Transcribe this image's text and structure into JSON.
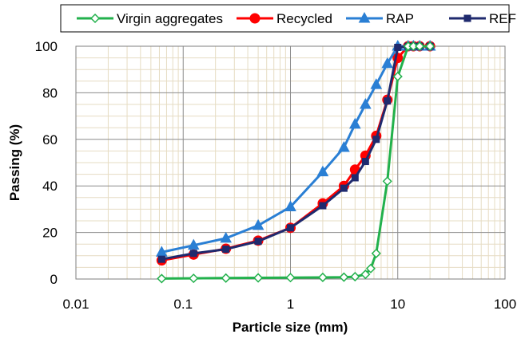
{
  "chart_data": {
    "type": "line",
    "title": "",
    "xlabel": "Particle size (mm)",
    "ylabel": "Passing (%)",
    "xscale": "log",
    "xlim": [
      0.01,
      100
    ],
    "ylim": [
      0,
      100
    ],
    "xticks": [
      "0.01",
      "0.1",
      "1",
      "10",
      "100"
    ],
    "yticks": [
      "0",
      "20",
      "40",
      "60",
      "80",
      "100"
    ],
    "grid": true,
    "legend_position": "top",
    "series": [
      {
        "name": "Virgin aggregates",
        "color": "#22b14c",
        "marker": "diamond-open",
        "x": [
          0.063,
          0.125,
          0.25,
          0.5,
          1,
          2,
          3.15,
          4,
          5,
          5.6,
          6.3,
          8,
          10,
          12.5,
          14,
          16,
          20
        ],
        "y": [
          0.2,
          0.3,
          0.4,
          0.5,
          0.6,
          0.7,
          0.8,
          1.0,
          2.0,
          4.5,
          11.0,
          42.0,
          87.0,
          100,
          100,
          100,
          100
        ]
      },
      {
        "name": "Recycled",
        "color": "#ff0000",
        "marker": "circle",
        "x": [
          0.063,
          0.125,
          0.25,
          0.5,
          1,
          2,
          3.15,
          4,
          5,
          6.3,
          8,
          10,
          12.5,
          14,
          16,
          20
        ],
        "y": [
          8.0,
          10.5,
          13.0,
          16.5,
          22.0,
          32.5,
          40.0,
          47.0,
          53.0,
          61.5,
          77.0,
          95.0,
          100,
          100,
          100,
          100
        ]
      },
      {
        "name": "RAP",
        "color": "#2a7fd4",
        "marker": "triangle",
        "x": [
          0.063,
          0.125,
          0.25,
          0.5,
          1,
          2,
          3.15,
          4,
          5,
          6.3,
          8,
          10,
          12.5,
          14,
          16,
          20
        ],
        "y": [
          11.5,
          14.5,
          17.5,
          23.0,
          31.0,
          46.0,
          56.5,
          66.5,
          75.0,
          83.5,
          92.5,
          100,
          100,
          100,
          100,
          100
        ]
      },
      {
        "name": "REF",
        "color": "#1f2a6e",
        "marker": "square",
        "x": [
          0.063,
          0.125,
          0.25,
          0.5,
          1,
          2,
          3.15,
          4,
          5,
          6.3,
          8,
          10,
          12.5,
          14,
          16,
          20
        ],
        "y": [
          8.5,
          11.0,
          12.8,
          16.2,
          22.0,
          31.5,
          39.0,
          43.5,
          50.5,
          60.0,
          76.5,
          99.5,
          100,
          100,
          100,
          100
        ]
      }
    ]
  }
}
